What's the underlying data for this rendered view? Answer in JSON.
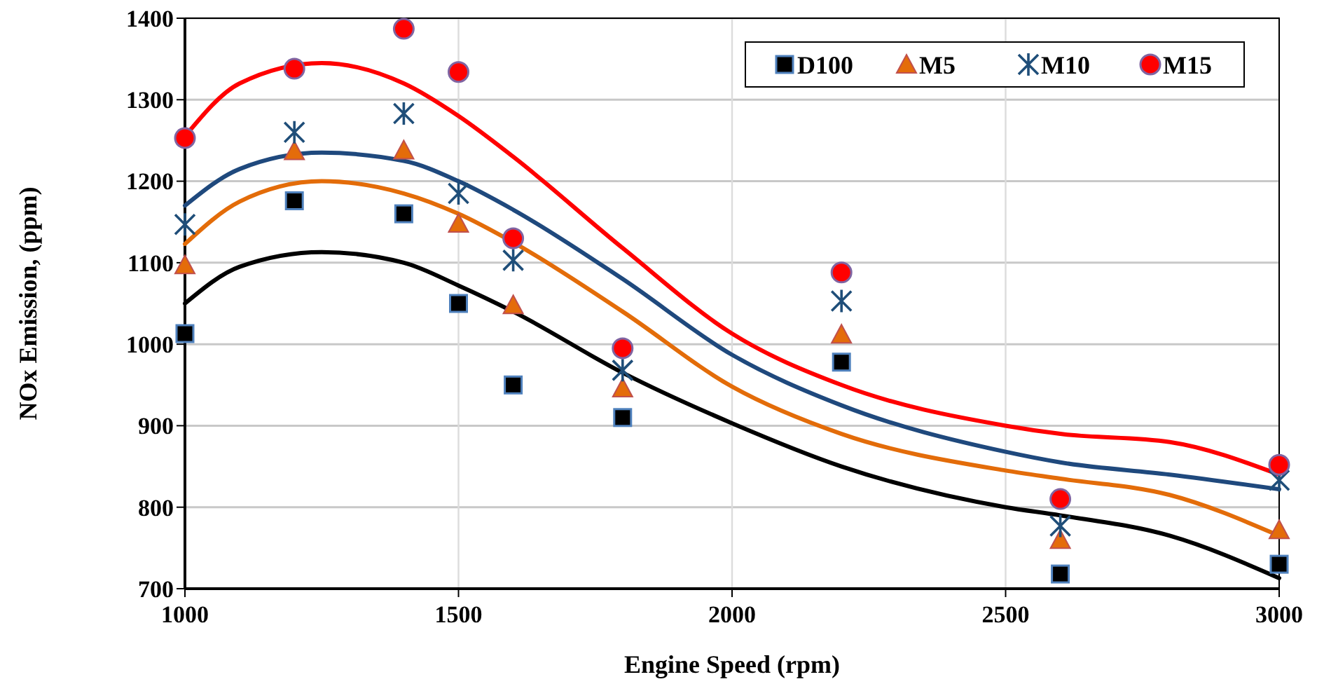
{
  "chart_data": {
    "type": "scatter",
    "xlabel": "Engine Speed (rpm)",
    "ylabel": "NOx Emission, (ppm)",
    "x": [
      1000,
      1200,
      1400,
      1500,
      1600,
      1800,
      2200,
      2600,
      3000
    ],
    "xlim": [
      1000,
      3000
    ],
    "xticks": [
      1000,
      1500,
      2000,
      2500,
      3000
    ],
    "ylim": [
      700,
      1400
    ],
    "yticks": [
      700,
      800,
      900,
      1000,
      1100,
      1200,
      1300,
      1400
    ],
    "grid": true,
    "legend": "top right",
    "series": [
      {
        "name": "D100",
        "color": "#000000",
        "marker": "square",
        "values": [
          1013,
          1176,
          1160,
          1050,
          950,
          910,
          978,
          718,
          730
        ]
      },
      {
        "name": "M5",
        "color": "#e46c0a",
        "marker": "triangle",
        "values": [
          1097,
          1237,
          1238,
          1148,
          1048,
          946,
          1012,
          760,
          772
        ]
      },
      {
        "name": "M10",
        "color": "#1f4e79",
        "marker": "cross",
        "values": [
          1147,
          1260,
          1283,
          1185,
          1103,
          968,
          1053,
          777,
          833
        ]
      },
      {
        "name": "M15",
        "color": "#ff0000",
        "marker": "circle",
        "values": [
          1253,
          1338,
          1387,
          1334,
          1130,
          995,
          1088,
          810,
          852
        ]
      },
      {
        "type": "line",
        "color": "#000000",
        "marker": "none",
        "x": [
          1000,
          1100,
          1250,
          1400,
          1500,
          1600,
          1800,
          2000,
          2200,
          2500,
          2600,
          2800,
          3000
        ],
        "values": [
          1050,
          1095,
          1113,
          1100,
          1072,
          1040,
          965,
          903,
          850,
          800,
          790,
          765,
          713
        ]
      },
      {
        "type": "line",
        "color": "#e36c09",
        "marker": "none",
        "x": [
          1000,
          1100,
          1250,
          1400,
          1500,
          1600,
          1800,
          2000,
          2200,
          2500,
          2600,
          2800,
          3000
        ],
        "values": [
          1123,
          1175,
          1200,
          1185,
          1160,
          1125,
          1040,
          948,
          890,
          845,
          835,
          815,
          765
        ]
      },
      {
        "type": "line",
        "color": "#1f497d",
        "marker": "none",
        "x": [
          1000,
          1100,
          1250,
          1400,
          1500,
          1600,
          1800,
          2000,
          2200,
          2500,
          2600,
          2800,
          3000
        ],
        "values": [
          1170,
          1215,
          1235,
          1225,
          1200,
          1165,
          1080,
          987,
          925,
          868,
          855,
          840,
          822
        ]
      },
      {
        "type": "line",
        "color": "#ff0000",
        "marker": "none",
        "x": [
          1000,
          1100,
          1250,
          1400,
          1500,
          1600,
          1800,
          2000,
          2200,
          2500,
          2600,
          2800,
          3000
        ],
        "values": [
          1255,
          1320,
          1345,
          1320,
          1280,
          1230,
          1118,
          1013,
          950,
          900,
          890,
          880,
          840
        ]
      }
    ]
  }
}
